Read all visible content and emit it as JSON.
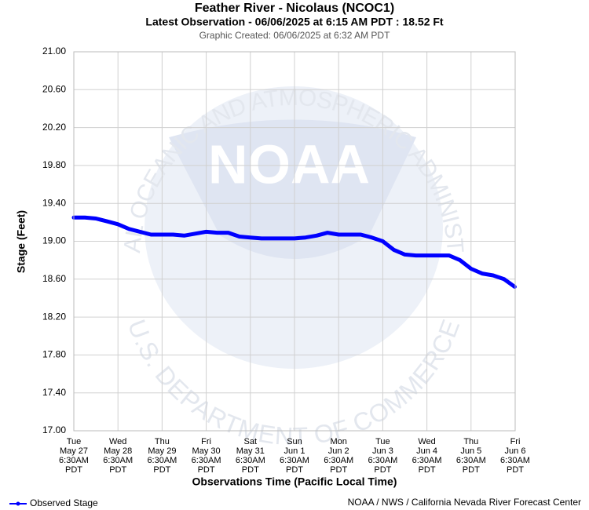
{
  "chart_data": {
    "type": "line",
    "title": "Feather River - Nicolaus (NCOC1)",
    "subtitle": "Latest Observation - 06/06/2025 at 6:15 AM PDT : 18.52 Ft",
    "note": "Graphic Created: 06/06/2025 at 6:32 AM PDT",
    "y_label": "Stage (Feet)",
    "x_label": "Observations Time (Pacific Local Time)",
    "credit": "NOAA / NWS / California Nevada River Forecast Center",
    "watermark": {
      "logo": "NOAA",
      "top": "NATIONAL OCEANIC AND ATMOSPHERIC ADMINISTRATION",
      "bottom": "U.S. DEPARTMENT OF COMMERCE"
    },
    "grid": true,
    "ylim": [
      17,
      21
    ],
    "yticks": [
      {
        "value": 17,
        "label": "17.00"
      },
      {
        "value": 17.4,
        "label": "17.40"
      },
      {
        "value": 17.8,
        "label": "17.80"
      },
      {
        "value": 18.2,
        "label": "18.20"
      },
      {
        "value": 18.6,
        "label": "18.60"
      },
      {
        "value": 19,
        "label": "19.00"
      },
      {
        "value": 19.4,
        "label": "19.40"
      },
      {
        "value": 19.8,
        "label": "19.80"
      },
      {
        "value": 20.2,
        "label": "20.20"
      },
      {
        "value": 20.6,
        "label": "20.60"
      },
      {
        "value": 21,
        "label": "21.00"
      }
    ],
    "xlim": [
      "05-27 06:30",
      "06-06 06:30"
    ],
    "xticks": [
      {
        "value": "05-27 06:30",
        "label": [
          "Tue",
          "May 27",
          "6:30AM",
          "PDT"
        ]
      },
      {
        "value": "05-28 06:30",
        "label": [
          "Wed",
          "May 28",
          "6:30AM",
          "PDT"
        ]
      },
      {
        "value": "05-29 06:30",
        "label": [
          "Thu",
          "May 29",
          "6:30AM",
          "PDT"
        ]
      },
      {
        "value": "05-30 06:30",
        "label": [
          "Fri",
          "May 30",
          "6:30AM",
          "PDT"
        ]
      },
      {
        "value": "05-31 06:30",
        "label": [
          "Sat",
          "May 31",
          "6:30AM",
          "PDT"
        ]
      },
      {
        "value": "06-01 06:30",
        "label": [
          "Sun",
          "Jun 1",
          "6:30AM",
          "PDT"
        ]
      },
      {
        "value": "06-02 06:30",
        "label": [
          "Mon",
          "Jun 2",
          "6:30AM",
          "PDT"
        ]
      },
      {
        "value": "06-03 06:30",
        "label": [
          "Tue",
          "Jun 3",
          "6:30AM",
          "PDT"
        ]
      },
      {
        "value": "06-04 06:30",
        "label": [
          "Wed",
          "Jun 4",
          "6:30AM",
          "PDT"
        ]
      },
      {
        "value": "06-05 06:30",
        "label": [
          "Thu",
          "Jun 5",
          "6:30AM",
          "PDT"
        ]
      },
      {
        "value": "06-06 06:30",
        "label": [
          "Fri",
          "Jun 6",
          "6:30AM",
          "PDT"
        ]
      }
    ],
    "x": [
      "05-27 06:30",
      "05-27 12:30",
      "05-27 18:30",
      "05-28 00:30",
      "05-28 06:30",
      "05-28 12:30",
      "05-28 18:30",
      "05-29 00:30",
      "05-29 06:30",
      "05-29 12:30",
      "05-29 18:30",
      "05-30 00:30",
      "05-30 06:30",
      "05-30 12:30",
      "05-30 18:30",
      "05-31 00:30",
      "05-31 06:30",
      "05-31 12:30",
      "05-31 18:30",
      "06-01 00:30",
      "06-01 06:30",
      "06-01 12:30",
      "06-01 18:30",
      "06-02 00:30",
      "06-02 06:30",
      "06-02 12:30",
      "06-02 18:30",
      "06-03 00:30",
      "06-03 06:30",
      "06-03 12:30",
      "06-03 18:30",
      "06-04 00:30",
      "06-04 06:30",
      "06-04 12:30",
      "06-04 18:30",
      "06-05 00:30",
      "06-05 06:30",
      "06-05 12:30",
      "06-05 18:30",
      "06-06 00:30",
      "06-06 06:15"
    ],
    "series": [
      {
        "name": "Observed Stage",
        "color": "#0000ff",
        "values": [
          19.25,
          19.25,
          19.24,
          19.21,
          19.18,
          19.13,
          19.1,
          19.07,
          19.07,
          19.07,
          19.06,
          19.08,
          19.1,
          19.09,
          19.09,
          19.05,
          19.04,
          19.03,
          19.03,
          19.03,
          19.03,
          19.04,
          19.06,
          19.09,
          19.07,
          19.07,
          19.07,
          19.04,
          19.0,
          18.91,
          18.86,
          18.85,
          18.85,
          18.85,
          18.85,
          18.8,
          18.71,
          18.66,
          18.64,
          18.6,
          18.52
        ]
      }
    ]
  }
}
